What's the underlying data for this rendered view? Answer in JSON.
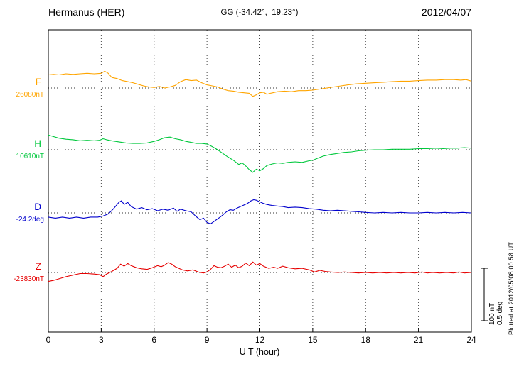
{
  "header": {
    "station": "Hermanus (HER)",
    "coords": "GG (-34.42°,  19.23°)",
    "date": "2012/04/07"
  },
  "side": {
    "plotted_at": "Plotted at 2012/05/08 00:58 UT",
    "scale_nT": "100 nT",
    "scale_deg": "0.5 deg"
  },
  "chart_data": {
    "type": "line",
    "title": "Hermanus (HER) magnetogram 2012/04/07",
    "xlabel": "U T (hour)",
    "xlim": [
      0,
      24
    ],
    "x_ticks": [
      0,
      3,
      6,
      9,
      12,
      15,
      18,
      21,
      24
    ],
    "grid": "dotted vertical lines every 3 h; dotted horizontal baseline per component",
    "legend_position": "left of axis",
    "scale_bar": {
      "nT": 100,
      "deg": 0.5
    },
    "points_are": "offsets from each component baseline value (nT for F,H,Z; deg for D)",
    "series": [
      {
        "name": "F",
        "unit": "nT",
        "baseline_label": "26080nT",
        "color": "#ffa500",
        "points": [
          [
            0,
            25
          ],
          [
            0.3,
            26
          ],
          [
            0.6,
            25
          ],
          [
            1,
            27
          ],
          [
            1.4,
            26
          ],
          [
            1.8,
            27
          ],
          [
            2.2,
            28
          ],
          [
            2.6,
            27
          ],
          [
            3,
            28
          ],
          [
            3.2,
            32
          ],
          [
            3.4,
            28
          ],
          [
            3.6,
            20
          ],
          [
            3.9,
            18
          ],
          [
            4.2,
            14
          ],
          [
            4.5,
            12
          ],
          [
            4.8,
            10
          ],
          [
            5.1,
            7
          ],
          [
            5.4,
            4
          ],
          [
            5.7,
            2
          ],
          [
            6,
            1
          ],
          [
            6.3,
            3
          ],
          [
            6.6,
            0
          ],
          [
            6.9,
            2
          ],
          [
            7.2,
            5
          ],
          [
            7.5,
            12
          ],
          [
            7.8,
            16
          ],
          [
            8.1,
            14
          ],
          [
            8.4,
            15
          ],
          [
            8.7,
            10
          ],
          [
            9,
            6
          ],
          [
            9.3,
            4
          ],
          [
            9.6,
            2
          ],
          [
            9.9,
            -2
          ],
          [
            10.2,
            -5
          ],
          [
            10.5,
            -6
          ],
          [
            10.8,
            -8
          ],
          [
            11.1,
            -9
          ],
          [
            11.4,
            -10
          ],
          [
            11.6,
            -16
          ],
          [
            11.8,
            -13
          ],
          [
            12,
            -9
          ],
          [
            12.2,
            -8
          ],
          [
            12.4,
            -12
          ],
          [
            12.6,
            -10
          ],
          [
            13,
            -7
          ],
          [
            13.4,
            -6
          ],
          [
            13.8,
            -7
          ],
          [
            14.2,
            -5
          ],
          [
            14.6,
            -5
          ],
          [
            15,
            -4
          ],
          [
            15.4,
            -2
          ],
          [
            15.8,
            0
          ],
          [
            16.2,
            2
          ],
          [
            16.6,
            4
          ],
          [
            17,
            6
          ],
          [
            17.5,
            8
          ],
          [
            18,
            9
          ],
          [
            18.5,
            10
          ],
          [
            19,
            11
          ],
          [
            19.5,
            12
          ],
          [
            20,
            13
          ],
          [
            20.5,
            13
          ],
          [
            21,
            14
          ],
          [
            21.5,
            15
          ],
          [
            22,
            15
          ],
          [
            22.5,
            16
          ],
          [
            23,
            16
          ],
          [
            23.4,
            15
          ],
          [
            23.7,
            16
          ],
          [
            24,
            13
          ]
        ]
      },
      {
        "name": "H",
        "unit": "nT",
        "baseline_label": "10610nT",
        "color": "#00c83c",
        "points": [
          [
            0,
            28
          ],
          [
            0.3,
            25
          ],
          [
            0.6,
            22
          ],
          [
            1,
            20
          ],
          [
            1.4,
            19
          ],
          [
            1.8,
            17
          ],
          [
            2.2,
            18
          ],
          [
            2.6,
            17
          ],
          [
            2.9,
            18
          ],
          [
            3.1,
            21
          ],
          [
            3.3,
            19
          ],
          [
            3.6,
            17
          ],
          [
            4,
            15
          ],
          [
            4.4,
            13
          ],
          [
            4.8,
            12
          ],
          [
            5.2,
            12
          ],
          [
            5.6,
            13
          ],
          [
            6,
            16
          ],
          [
            6.3,
            19
          ],
          [
            6.6,
            23
          ],
          [
            6.9,
            24
          ],
          [
            7.2,
            21
          ],
          [
            7.5,
            19
          ],
          [
            7.8,
            16
          ],
          [
            8.1,
            14
          ],
          [
            8.4,
            12
          ],
          [
            8.7,
            12
          ],
          [
            9,
            11
          ],
          [
            9.3,
            6
          ],
          [
            9.6,
            0
          ],
          [
            9.9,
            -7
          ],
          [
            10.2,
            -14
          ],
          [
            10.5,
            -20
          ],
          [
            10.8,
            -28
          ],
          [
            11,
            -25
          ],
          [
            11.2,
            -31
          ],
          [
            11.4,
            -38
          ],
          [
            11.6,
            -43
          ],
          [
            11.8,
            -37
          ],
          [
            12,
            -40
          ],
          [
            12.2,
            -36
          ],
          [
            12.4,
            -30
          ],
          [
            12.7,
            -27
          ],
          [
            13,
            -25
          ],
          [
            13.3,
            -26
          ],
          [
            13.6,
            -24
          ],
          [
            14,
            -23
          ],
          [
            14.4,
            -24
          ],
          [
            14.8,
            -21
          ],
          [
            15,
            -20
          ],
          [
            15.3,
            -16
          ],
          [
            15.6,
            -12
          ],
          [
            16,
            -9
          ],
          [
            16.4,
            -7
          ],
          [
            16.8,
            -5
          ],
          [
            17.2,
            -4
          ],
          [
            17.6,
            -2
          ],
          [
            18,
            -1
          ],
          [
            18.5,
            0
          ],
          [
            19,
            0
          ],
          [
            19.5,
            1
          ],
          [
            20,
            1
          ],
          [
            20.5,
            1
          ],
          [
            21,
            2
          ],
          [
            21.5,
            2
          ],
          [
            22,
            3
          ],
          [
            22.4,
            2
          ],
          [
            22.8,
            3
          ],
          [
            23.2,
            3
          ],
          [
            23.6,
            4
          ],
          [
            24,
            3
          ]
        ]
      },
      {
        "name": "D",
        "unit": "deg",
        "baseline_label": "-24.2deg",
        "color": "#0000cd",
        "points": [
          [
            0,
            -0.04
          ],
          [
            0.4,
            -0.05
          ],
          [
            0.8,
            -0.04
          ],
          [
            1.2,
            -0.05
          ],
          [
            1.6,
            -0.04
          ],
          [
            2,
            -0.05
          ],
          [
            2.4,
            -0.04
          ],
          [
            2.8,
            -0.04
          ],
          [
            3.1,
            -0.03
          ],
          [
            3.4,
            -0.01
          ],
          [
            3.7,
            0.04
          ],
          [
            4,
            0.1
          ],
          [
            4.15,
            0.115
          ],
          [
            4.3,
            0.08
          ],
          [
            4.5,
            0.1
          ],
          [
            4.7,
            0.06
          ],
          [
            5,
            0.035
          ],
          [
            5.3,
            0.05
          ],
          [
            5.6,
            0.03
          ],
          [
            5.9,
            0.04
          ],
          [
            6.2,
            0.02
          ],
          [
            6.5,
            0.035
          ],
          [
            6.8,
            0.025
          ],
          [
            7.1,
            0.045
          ],
          [
            7.3,
            0.015
          ],
          [
            7.5,
            0.035
          ],
          [
            7.8,
            0.02
          ],
          [
            8.1,
            0.01
          ],
          [
            8.35,
            -0.03
          ],
          [
            8.6,
            -0.065
          ],
          [
            8.8,
            -0.05
          ],
          [
            9,
            -0.09
          ],
          [
            9.2,
            -0.105
          ],
          [
            9.45,
            -0.075
          ],
          [
            9.7,
            -0.045
          ],
          [
            9.9,
            -0.02
          ],
          [
            10.1,
            0.01
          ],
          [
            10.3,
            0.03
          ],
          [
            10.5,
            0.025
          ],
          [
            10.7,
            0.045
          ],
          [
            10.9,
            0.06
          ],
          [
            11.1,
            0.075
          ],
          [
            11.3,
            0.09
          ],
          [
            11.5,
            0.115
          ],
          [
            11.65,
            0.125
          ],
          [
            11.8,
            0.12
          ],
          [
            12,
            0.105
          ],
          [
            12.2,
            0.09
          ],
          [
            12.4,
            0.08
          ],
          [
            12.7,
            0.07
          ],
          [
            13,
            0.065
          ],
          [
            13.3,
            0.06
          ],
          [
            13.6,
            0.05
          ],
          [
            14,
            0.055
          ],
          [
            14.4,
            0.05
          ],
          [
            14.8,
            0.04
          ],
          [
            15.2,
            0.035
          ],
          [
            15.6,
            0.025
          ],
          [
            16,
            0.02
          ],
          [
            16.4,
            0.025
          ],
          [
            16.8,
            0.02
          ],
          [
            17.2,
            0.015
          ],
          [
            17.6,
            0.01
          ],
          [
            18,
            0.005
          ],
          [
            18.5,
            0
          ],
          [
            19,
            0.005
          ],
          [
            19.5,
            0
          ],
          [
            20,
            0.005
          ],
          [
            20.5,
            0
          ],
          [
            21,
            0
          ],
          [
            21.5,
            0.005
          ],
          [
            22,
            0
          ],
          [
            22.5,
            0.005
          ],
          [
            23,
            0
          ],
          [
            23.5,
            0.005
          ],
          [
            24,
            0
          ]
        ]
      },
      {
        "name": "Z",
        "unit": "nT",
        "baseline_label": "-23830nT",
        "color": "#e60000",
        "points": [
          [
            0,
            -17
          ],
          [
            0.3,
            -15
          ],
          [
            0.6,
            -12
          ],
          [
            1,
            -8
          ],
          [
            1.4,
            -5
          ],
          [
            1.8,
            -2
          ],
          [
            2.2,
            -2
          ],
          [
            2.6,
            -3
          ],
          [
            2.9,
            -4
          ],
          [
            3.1,
            -8
          ],
          [
            3.3,
            -3
          ],
          [
            3.6,
            2
          ],
          [
            3.9,
            8
          ],
          [
            4.1,
            16
          ],
          [
            4.3,
            12
          ],
          [
            4.5,
            17
          ],
          [
            4.7,
            13
          ],
          [
            5,
            9
          ],
          [
            5.3,
            7
          ],
          [
            5.6,
            6
          ],
          [
            5.9,
            9
          ],
          [
            6.2,
            13
          ],
          [
            6.4,
            11
          ],
          [
            6.6,
            14
          ],
          [
            6.8,
            19
          ],
          [
            7,
            16
          ],
          [
            7.2,
            11
          ],
          [
            7.4,
            8
          ],
          [
            7.6,
            5
          ],
          [
            7.9,
            3
          ],
          [
            8.2,
            5
          ],
          [
            8.5,
            1
          ],
          [
            8.8,
            -1
          ],
          [
            9,
            1
          ],
          [
            9.2,
            6
          ],
          [
            9.4,
            13
          ],
          [
            9.6,
            10
          ],
          [
            9.8,
            9
          ],
          [
            10,
            12
          ],
          [
            10.2,
            16
          ],
          [
            10.4,
            10
          ],
          [
            10.6,
            14
          ],
          [
            10.8,
            9
          ],
          [
            11,
            12
          ],
          [
            11.2,
            18
          ],
          [
            11.4,
            13
          ],
          [
            11.6,
            20
          ],
          [
            11.8,
            14
          ],
          [
            12,
            17
          ],
          [
            12.2,
            12
          ],
          [
            12.5,
            8
          ],
          [
            12.8,
            10
          ],
          [
            13,
            8
          ],
          [
            13.3,
            12
          ],
          [
            13.6,
            9
          ],
          [
            14,
            7
          ],
          [
            14.4,
            8
          ],
          [
            14.8,
            5
          ],
          [
            15.1,
            1
          ],
          [
            15.4,
            4
          ],
          [
            15.7,
            2
          ],
          [
            16,
            1
          ],
          [
            16.4,
            0
          ],
          [
            16.8,
            1
          ],
          [
            17.2,
            0
          ],
          [
            17.6,
            -1
          ],
          [
            18,
            0
          ],
          [
            18.4,
            -1
          ],
          [
            18.8,
            0
          ],
          [
            19.2,
            -1
          ],
          [
            19.6,
            0
          ],
          [
            20,
            -1
          ],
          [
            20.4,
            0
          ],
          [
            20.8,
            -1
          ],
          [
            21.2,
            1
          ],
          [
            21.5,
            -1
          ],
          [
            21.8,
            0
          ],
          [
            22.2,
            -1
          ],
          [
            22.6,
            0
          ],
          [
            23,
            -1
          ],
          [
            23.3,
            1
          ],
          [
            23.6,
            -1
          ],
          [
            24,
            0
          ]
        ]
      }
    ]
  }
}
